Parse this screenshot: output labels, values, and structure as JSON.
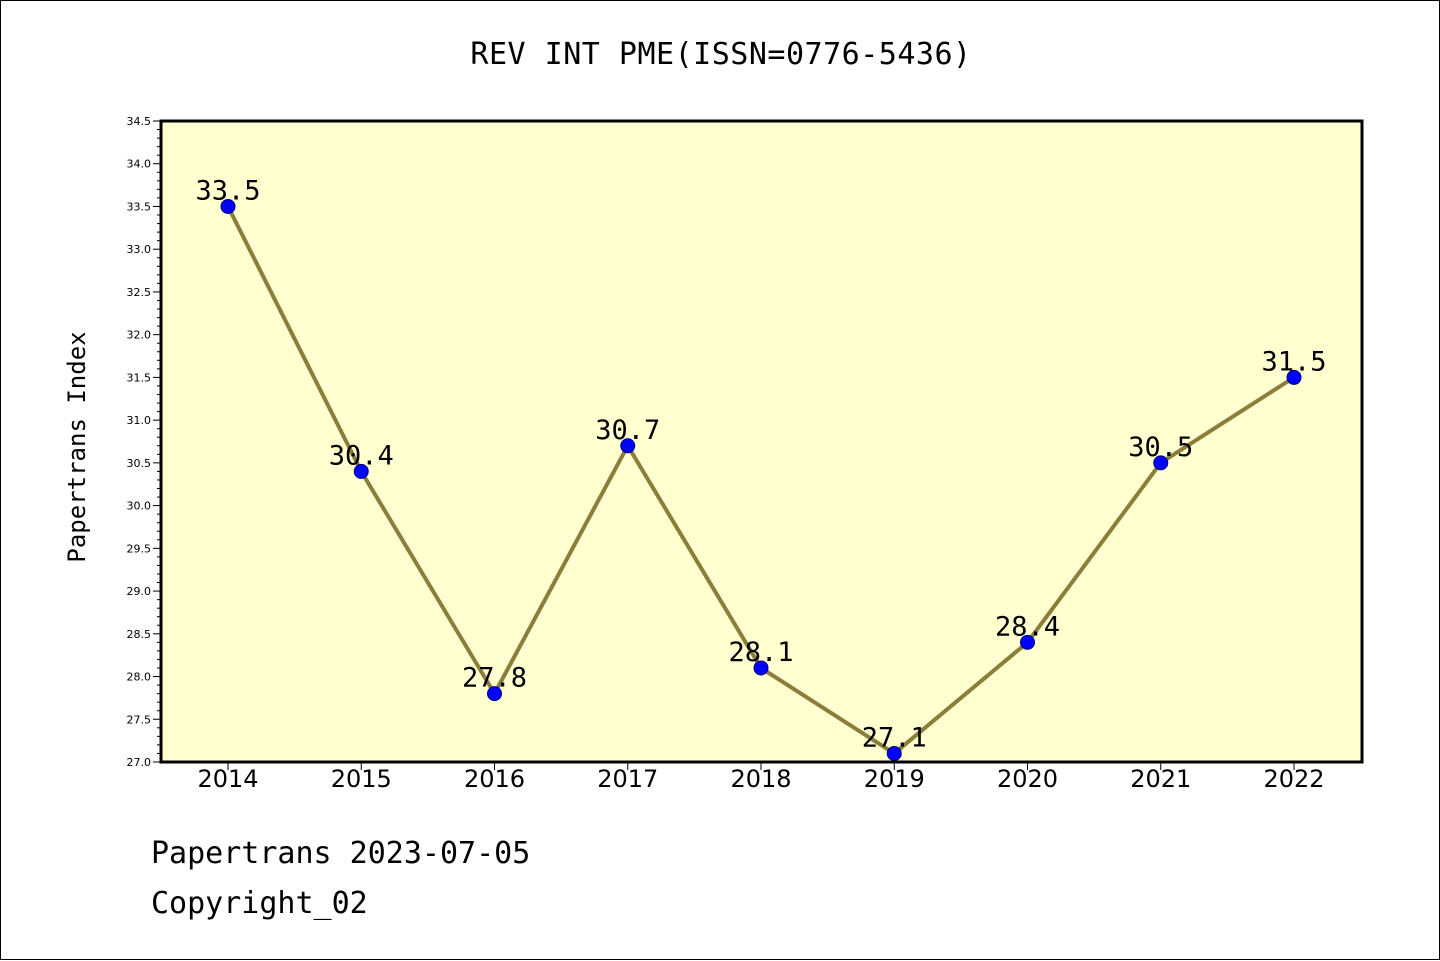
{
  "chart_data": {
    "type": "line",
    "title": "REV INT PME(ISSN=0776-5436)",
    "xlabel": "",
    "ylabel": "Papertrans Index",
    "categories": [
      "2014",
      "2015",
      "2016",
      "2017",
      "2018",
      "2019",
      "2020",
      "2021",
      "2022"
    ],
    "series": [
      {
        "values": [
          33.5,
          30.4,
          27.8,
          30.7,
          28.1,
          27.1,
          28.4,
          30.5,
          31.5
        ]
      }
    ],
    "data_labels": [
      "33.5",
      "30.4",
      "27.8",
      "30.7",
      "28.1",
      "27.1",
      "28.4",
      "30.5",
      "31.5"
    ],
    "ylim": [
      27.0,
      34.5
    ],
    "yticks": [
      "27.0",
      "27.5",
      "28.0",
      "28.5",
      "29.0",
      "29.5",
      "30.0",
      "30.5",
      "31.0",
      "31.5",
      "32.0",
      "32.5",
      "33.0",
      "33.5",
      "34.0",
      "34.5"
    ],
    "grid": false,
    "colors": {
      "plot_background": "#FFFFD0",
      "line": "#8B7D3A",
      "marker": "#0000FF"
    }
  },
  "footer": {
    "line1": "Papertrans 2023-07-05",
    "line2": "Copyright_02"
  }
}
